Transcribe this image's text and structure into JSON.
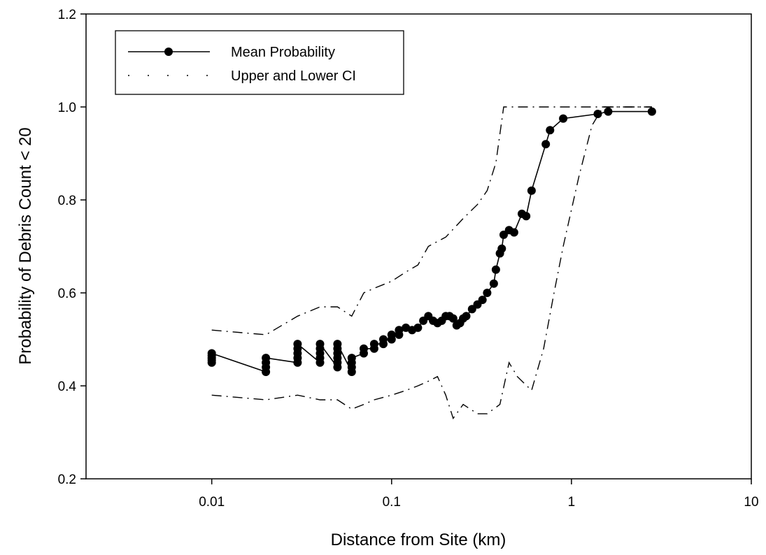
{
  "chart_data": {
    "type": "line",
    "title": "",
    "xlabel": "Distance from Site (km)",
    "ylabel": "Probability of Debris Count < 20",
    "x_scale": "log",
    "xlim": [
      0.002,
      10
    ],
    "ylim": [
      0.2,
      1.2
    ],
    "x_ticks": [
      {
        "value": 0.01,
        "label": "0.01"
      },
      {
        "value": 0.1,
        "label": "0.1"
      },
      {
        "value": 1,
        "label": "1"
      },
      {
        "value": 10,
        "label": "10"
      }
    ],
    "y_ticks": [
      {
        "value": 0.2,
        "label": "0.2"
      },
      {
        "value": 0.4,
        "label": "0.4"
      },
      {
        "value": 0.6,
        "label": "0.6"
      },
      {
        "value": 0.8,
        "label": "0.8"
      },
      {
        "value": 1.0,
        "label": "1.0"
      },
      {
        "value": 1.2,
        "label": "1.2"
      }
    ],
    "grid": false,
    "legend_position": "top-left",
    "series": [
      {
        "name": "Mean Probability",
        "style": "solid-with-markers",
        "color": "#000000",
        "points": [
          [
            0.01,
            0.45
          ],
          [
            0.01,
            0.455
          ],
          [
            0.01,
            0.46
          ],
          [
            0.01,
            0.465
          ],
          [
            0.01,
            0.47
          ],
          [
            0.02,
            0.43
          ],
          [
            0.02,
            0.44
          ],
          [
            0.02,
            0.45
          ],
          [
            0.02,
            0.46
          ],
          [
            0.03,
            0.45
          ],
          [
            0.03,
            0.46
          ],
          [
            0.03,
            0.47
          ],
          [
            0.03,
            0.48
          ],
          [
            0.03,
            0.49
          ],
          [
            0.04,
            0.45
          ],
          [
            0.04,
            0.46
          ],
          [
            0.04,
            0.47
          ],
          [
            0.04,
            0.48
          ],
          [
            0.04,
            0.49
          ],
          [
            0.05,
            0.44
          ],
          [
            0.05,
            0.45
          ],
          [
            0.05,
            0.46
          ],
          [
            0.05,
            0.47
          ],
          [
            0.05,
            0.48
          ],
          [
            0.05,
            0.49
          ],
          [
            0.06,
            0.43
          ],
          [
            0.06,
            0.44
          ],
          [
            0.06,
            0.45
          ],
          [
            0.06,
            0.46
          ],
          [
            0.07,
            0.47
          ],
          [
            0.07,
            0.48
          ],
          [
            0.08,
            0.48
          ],
          [
            0.08,
            0.49
          ],
          [
            0.09,
            0.49
          ],
          [
            0.09,
            0.5
          ],
          [
            0.1,
            0.5
          ],
          [
            0.1,
            0.51
          ],
          [
            0.11,
            0.51
          ],
          [
            0.11,
            0.52
          ],
          [
            0.12,
            0.525
          ],
          [
            0.13,
            0.52
          ],
          [
            0.14,
            0.525
          ],
          [
            0.15,
            0.54
          ],
          [
            0.16,
            0.55
          ],
          [
            0.17,
            0.54
          ],
          [
            0.18,
            0.535
          ],
          [
            0.19,
            0.54
          ],
          [
            0.2,
            0.55
          ],
          [
            0.21,
            0.55
          ],
          [
            0.22,
            0.545
          ],
          [
            0.23,
            0.53
          ],
          [
            0.24,
            0.535
          ],
          [
            0.25,
            0.545
          ],
          [
            0.26,
            0.55
          ],
          [
            0.28,
            0.565
          ],
          [
            0.3,
            0.575
          ],
          [
            0.32,
            0.585
          ],
          [
            0.34,
            0.6
          ],
          [
            0.37,
            0.62
          ],
          [
            0.38,
            0.65
          ],
          [
            0.4,
            0.685
          ],
          [
            0.41,
            0.695
          ],
          [
            0.42,
            0.725
          ],
          [
            0.45,
            0.735
          ],
          [
            0.48,
            0.73
          ],
          [
            0.53,
            0.77
          ],
          [
            0.56,
            0.765
          ],
          [
            0.6,
            0.82
          ],
          [
            0.72,
            0.92
          ],
          [
            0.76,
            0.95
          ],
          [
            0.9,
            0.975
          ],
          [
            1.4,
            0.985
          ],
          [
            1.6,
            0.99
          ],
          [
            2.8,
            0.99
          ]
        ]
      },
      {
        "name": "Upper and Lower CI",
        "style": "dash-dot",
        "color": "#000000",
        "upper": [
          [
            0.01,
            0.52
          ],
          [
            0.02,
            0.51
          ],
          [
            0.03,
            0.55
          ],
          [
            0.04,
            0.57
          ],
          [
            0.05,
            0.57
          ],
          [
            0.06,
            0.55
          ],
          [
            0.07,
            0.6
          ],
          [
            0.08,
            0.61
          ],
          [
            0.1,
            0.625
          ],
          [
            0.12,
            0.645
          ],
          [
            0.14,
            0.66
          ],
          [
            0.16,
            0.7
          ],
          [
            0.2,
            0.72
          ],
          [
            0.25,
            0.76
          ],
          [
            0.3,
            0.79
          ],
          [
            0.34,
            0.82
          ],
          [
            0.38,
            0.88
          ],
          [
            0.42,
            1.0
          ],
          [
            0.6,
            1.0
          ],
          [
            1.0,
            1.0
          ],
          [
            2.0,
            1.0
          ],
          [
            2.8,
            1.0
          ]
        ],
        "lower": [
          [
            0.01,
            0.38
          ],
          [
            0.02,
            0.37
          ],
          [
            0.03,
            0.38
          ],
          [
            0.04,
            0.37
          ],
          [
            0.05,
            0.37
          ],
          [
            0.06,
            0.35
          ],
          [
            0.07,
            0.36
          ],
          [
            0.08,
            0.37
          ],
          [
            0.1,
            0.38
          ],
          [
            0.12,
            0.39
          ],
          [
            0.14,
            0.4
          ],
          [
            0.16,
            0.41
          ],
          [
            0.18,
            0.42
          ],
          [
            0.2,
            0.38
          ],
          [
            0.22,
            0.33
          ],
          [
            0.25,
            0.36
          ],
          [
            0.3,
            0.34
          ],
          [
            0.34,
            0.34
          ],
          [
            0.4,
            0.36
          ],
          [
            0.45,
            0.45
          ],
          [
            0.5,
            0.42
          ],
          [
            0.6,
            0.39
          ],
          [
            0.7,
            0.48
          ],
          [
            0.8,
            0.6
          ],
          [
            0.9,
            0.7
          ],
          [
            1.1,
            0.85
          ],
          [
            1.3,
            0.96
          ],
          [
            1.5,
            1.0
          ],
          [
            2.8,
            1.0
          ]
        ]
      }
    ]
  }
}
